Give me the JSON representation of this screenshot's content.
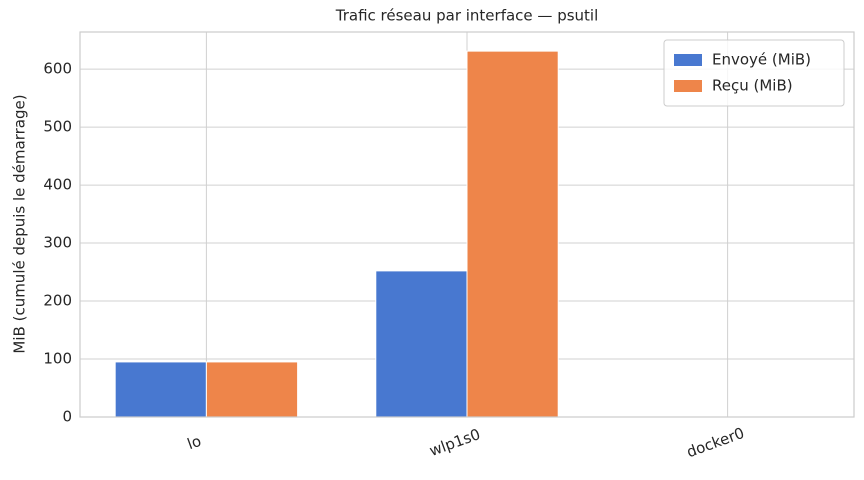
{
  "chart_data": {
    "type": "bar",
    "title": "Trafic réseau par interface — psutil",
    "y_label": "MiB (cumulé depuis le démarrage)",
    "categories": [
      "lo",
      "wlp1s0",
      "docker0"
    ],
    "series": [
      {
        "name": "Envoyé (MiB)",
        "color": "#4878d0",
        "values": [
          95,
          252,
          0
        ]
      },
      {
        "name": "Reçu (MiB)",
        "color": "#ee854a",
        "values": [
          95,
          631,
          0
        ]
      }
    ],
    "ylim": [
      0,
      664
    ],
    "yticks": [
      0,
      100,
      200,
      300,
      400,
      500,
      600
    ],
    "grid": true,
    "legend": "upper right"
  }
}
